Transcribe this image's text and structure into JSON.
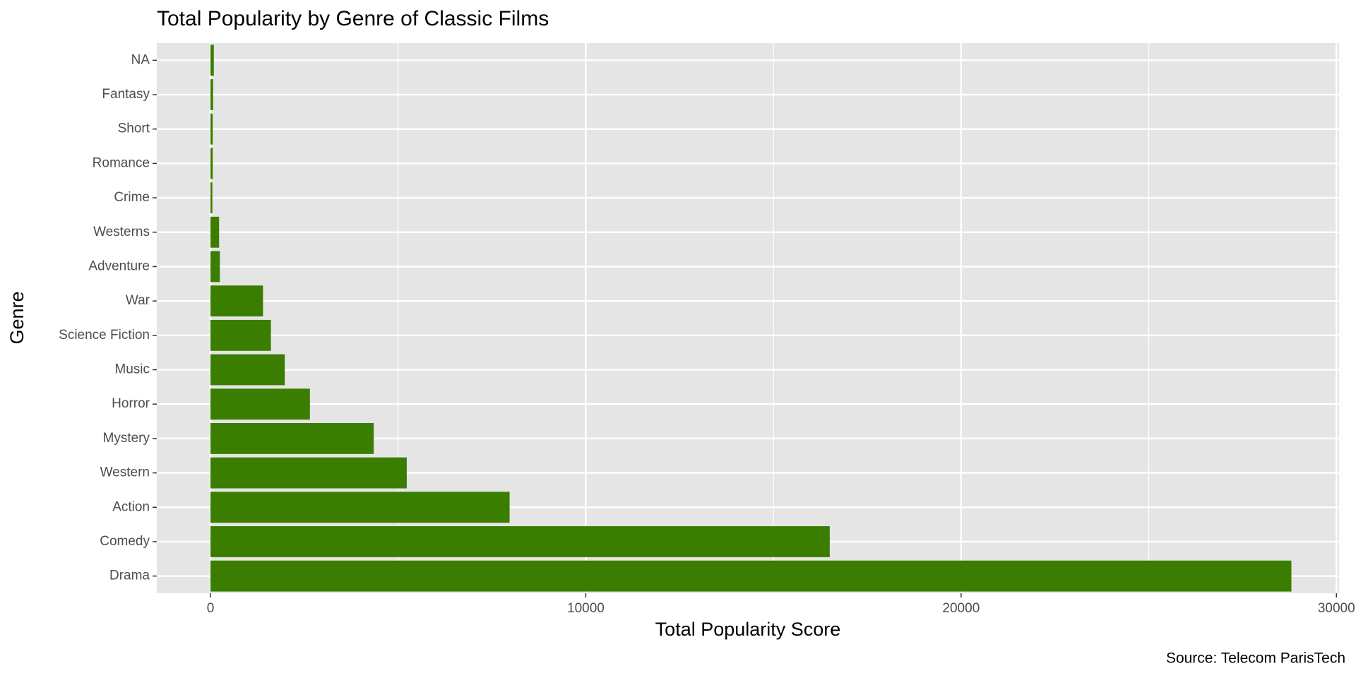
{
  "chart_data": {
    "type": "bar",
    "orientation": "horizontal",
    "title": "Total Popularity by Genre of Classic Films",
    "x_label": "Total Popularity Score",
    "y_label": "Genre",
    "caption": "Source: Telecom ParisTech",
    "categories": [
      "NA",
      "Fantasy",
      "Short",
      "Romance",
      "Crime",
      "Westerns",
      "Adventure",
      "War",
      "Science Fiction",
      "Music",
      "Horror",
      "Mystery",
      "Western",
      "Action",
      "Comedy",
      "Drama"
    ],
    "values": [
      90,
      70,
      60,
      60,
      50,
      230,
      250,
      1400,
      1610,
      1980,
      2650,
      4350,
      5230,
      7970,
      16500,
      28800
    ],
    "color": "#3a7d00",
    "xlim": [
      -1430,
      30070
    ],
    "xticks": [
      0,
      10000,
      20000,
      30000
    ],
    "xminor": [
      5000,
      15000,
      25000
    ],
    "grid": true
  }
}
